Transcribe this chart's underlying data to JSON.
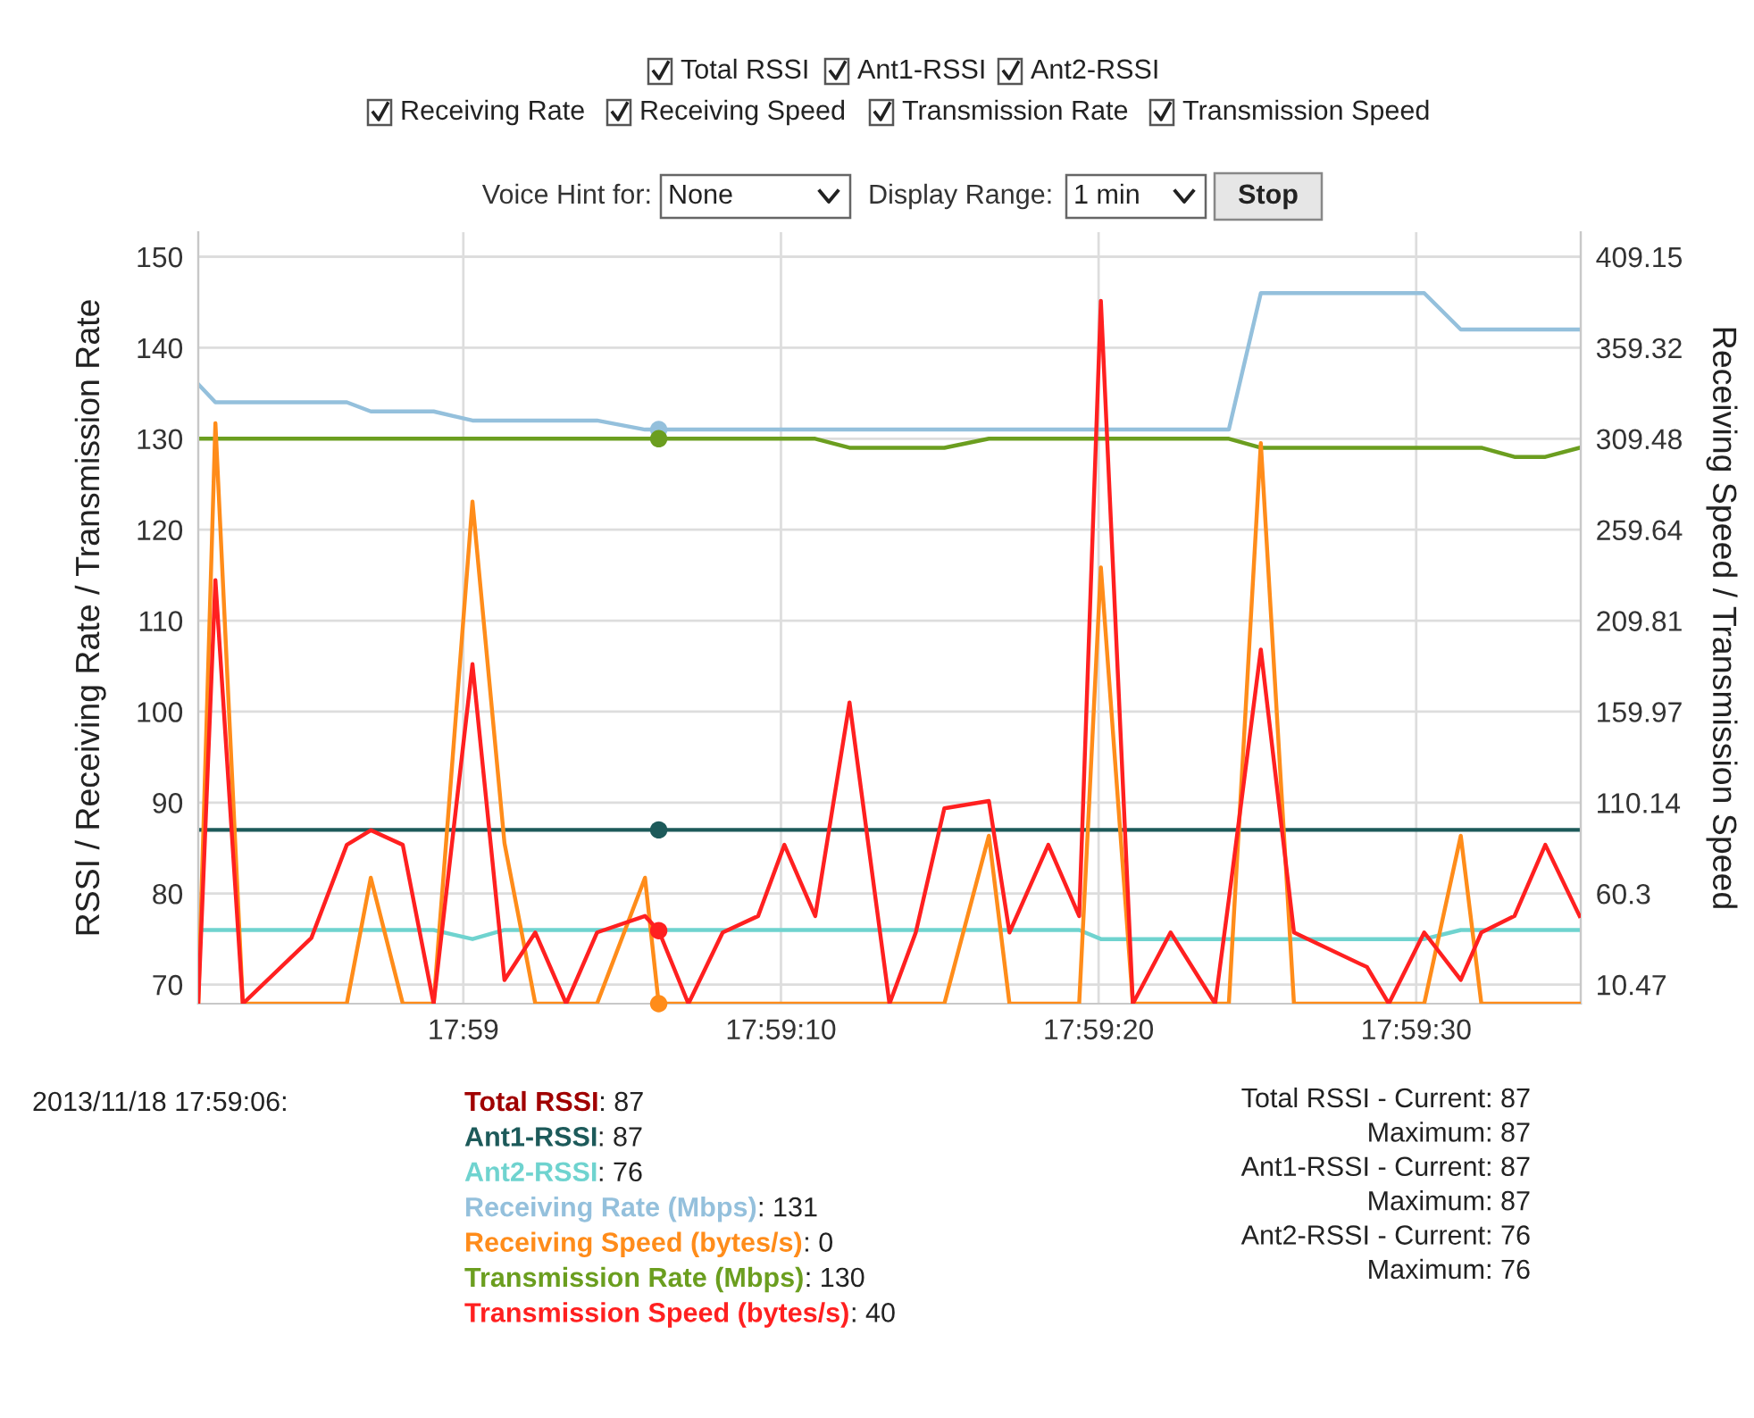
{
  "chart_data": {
    "type": "line",
    "ylabel": "RSSI / Receiving Rate / Transmission Rate",
    "y2label": "Receiving Speed / Transmission Speed",
    "x": [
      17.98101,
      17.98116,
      17.9814,
      17.982,
      17.98231,
      17.98252,
      17.9828,
      17.98307,
      17.98341,
      17.98369,
      17.98396,
      17.98423,
      17.9845,
      17.98492,
      17.98504,
      17.9853,
      17.9856,
      17.98591,
      17.98614,
      17.98641,
      17.98671,
      17.98706,
      17.98729,
      17.98754,
      17.98793,
      17.98811,
      17.98845,
      17.98872,
      17.98891,
      17.98919,
      17.98952,
      17.98991,
      17.99003,
      17.99031,
      17.9906,
      17.99124,
      17.99143,
      17.99174,
      17.99206,
      17.99224,
      17.99253,
      17.9928,
      17.9931
    ],
    "xlim": [
      17.98101,
      17.99311
    ],
    "xticks": [
      {
        "value": 17.98333,
        "label": "17:59"
      },
      {
        "value": 17.98611,
        "label": "17:59:10"
      },
      {
        "value": 17.98889,
        "label": "17:59:20"
      },
      {
        "value": 17.99167,
        "label": "17:59:30"
      }
    ],
    "ylim": [
      67.9,
      152.7
    ],
    "yticks": [
      70,
      80,
      90,
      100,
      110,
      120,
      130,
      140,
      150
    ],
    "y2lim": [
      0,
      422.6
    ],
    "y2ticks": [
      10.47,
      60.3,
      110.14,
      159.97,
      209.81,
      259.64,
      309.48,
      359.32,
      409.15
    ],
    "grid": true,
    "legend": "bottom",
    "series": [
      {
        "name": "Total RSSI",
        "color": "#a00000",
        "values": [
          null,
          null,
          null,
          null,
          null,
          null,
          null,
          null,
          null,
          null,
          null,
          null,
          null,
          null,
          null,
          null,
          null,
          null,
          null,
          null,
          null,
          null,
          null,
          null,
          null,
          null,
          null,
          null,
          null,
          null,
          null,
          null,
          null,
          null,
          null,
          null,
          null,
          null,
          null,
          null,
          null,
          null,
          null
        ]
      },
      {
        "name": "Ant1-RSSI",
        "color": "#1d5a5a",
        "values": [
          87,
          87,
          87,
          87,
          87,
          87,
          87,
          87,
          87,
          87,
          87,
          87,
          87,
          87,
          87,
          87,
          87,
          87,
          87,
          87,
          87,
          87,
          87,
          87,
          87,
          87,
          87,
          87,
          87,
          87,
          87,
          87,
          87,
          87,
          87,
          87,
          87,
          87,
          87,
          87,
          87,
          87,
          87
        ]
      },
      {
        "name": "Ant2-RSSI",
        "color": "#6fd3cf",
        "values": [
          76,
          76,
          76,
          76,
          76,
          76,
          76,
          76,
          75,
          76,
          76,
          76,
          76,
          76,
          76,
          76,
          76,
          76,
          76,
          76,
          76,
          76,
          76,
          76,
          76,
          76,
          76,
          76,
          75,
          75,
          75,
          75,
          75,
          75,
          75,
          75,
          75,
          75,
          76,
          76,
          76,
          76,
          76
        ]
      },
      {
        "name": "Receiving Rate (Mbps)",
        "color": "#94c0dc",
        "values": [
          136,
          134,
          134,
          134,
          134,
          133,
          133,
          133,
          132,
          132,
          132,
          132,
          132,
          131,
          131,
          131,
          131,
          131,
          131,
          131,
          131,
          131,
          131,
          131,
          131,
          131,
          131,
          131,
          131,
          131,
          131,
          131,
          131,
          146,
          146,
          146,
          146,
          146,
          142,
          142,
          142,
          142,
          142
        ]
      },
      {
        "name": "Receiving Speed (bytes/s)",
        "color": "#ff8c1a",
        "axis": "y2",
        "values": [
          0,
          318,
          0,
          0,
          0,
          69,
          0,
          0,
          275,
          88,
          0,
          0,
          0,
          69,
          0,
          0,
          0,
          0,
          0,
          0,
          0,
          0,
          0,
          0,
          92,
          0,
          0,
          0,
          239,
          0,
          0,
          0,
          0,
          307,
          0,
          0,
          0,
          0,
          92,
          0,
          0,
          0,
          0
        ]
      },
      {
        "name": "Transmission Rate (Mbps)",
        "color": "#6b9e1f",
        "values": [
          130,
          130,
          130,
          130,
          130,
          130,
          130,
          130,
          130,
          130,
          130,
          130,
          130,
          130,
          130,
          130,
          130,
          130,
          130,
          130,
          129,
          129,
          129,
          129,
          130,
          130,
          130,
          130,
          130,
          130,
          130,
          130,
          130,
          129,
          129,
          129,
          129,
          129,
          129,
          129,
          128,
          128,
          129
        ]
      },
      {
        "name": "Transmission Speed (bytes/s)",
        "color": "#ff2020",
        "axis": "y2",
        "values": [
          0,
          232,
          0,
          36,
          87,
          95,
          87,
          0,
          186,
          13,
          39,
          0,
          39,
          48,
          40,
          0,
          39,
          48,
          87,
          48,
          165,
          0,
          39,
          107,
          111,
          39,
          87,
          48,
          385,
          0,
          39,
          0,
          57,
          194,
          39,
          20,
          0,
          39,
          13,
          39,
          48,
          87,
          48
        ]
      },
      {
        "type": "scatter",
        "marker": "circle",
        "color": "#94c0dc",
        "values": [
          null,
          null,
          null,
          null,
          null,
          null,
          null,
          null,
          null,
          null,
          null,
          null,
          null,
          null,
          131,
          null,
          null,
          null,
          null,
          null,
          null,
          null,
          null,
          null,
          null,
          null,
          null,
          null,
          null,
          null,
          null,
          null,
          null,
          null,
          null,
          null,
          null,
          null,
          null,
          null,
          null,
          null,
          null
        ]
      },
      {
        "type": "scatter",
        "marker": "circle",
        "color": "#6b9e1f",
        "values": [
          null,
          null,
          null,
          null,
          null,
          null,
          null,
          null,
          null,
          null,
          null,
          null,
          null,
          null,
          130,
          null,
          null,
          null,
          null,
          null,
          null,
          null,
          null,
          null,
          null,
          null,
          null,
          null,
          null,
          null,
          null,
          null,
          null,
          null,
          null,
          null,
          null,
          null,
          null,
          null,
          null,
          null,
          null
        ]
      },
      {
        "type": "scatter",
        "marker": "circle",
        "color": "#1d5a5a",
        "values": [
          null,
          null,
          null,
          null,
          null,
          null,
          null,
          null,
          null,
          null,
          null,
          null,
          null,
          null,
          87,
          null,
          null,
          null,
          null,
          null,
          null,
          null,
          null,
          null,
          null,
          null,
          null,
          null,
          null,
          null,
          null,
          null,
          null,
          null,
          null,
          null,
          null,
          null,
          null,
          null,
          null,
          null,
          null
        ]
      },
      {
        "type": "scatter",
        "marker": "circle",
        "color": "#ff2020",
        "axis": "y2",
        "values": [
          null,
          null,
          null,
          null,
          null,
          null,
          null,
          null,
          null,
          null,
          null,
          null,
          null,
          null,
          40,
          null,
          null,
          null,
          null,
          null,
          null,
          null,
          null,
          null,
          null,
          null,
          null,
          null,
          null,
          null,
          null,
          null,
          null,
          null,
          null,
          null,
          null,
          null,
          null,
          null,
          null,
          null,
          null
        ]
      },
      {
        "type": "scatter",
        "marker": "circle",
        "color": "#ff8c1a",
        "axis": "y2",
        "values": [
          null,
          null,
          null,
          null,
          null,
          null,
          null,
          null,
          null,
          null,
          null,
          null,
          null,
          null,
          0,
          null,
          null,
          null,
          null,
          null,
          null,
          null,
          null,
          null,
          null,
          null,
          null,
          null,
          null,
          null,
          null,
          null,
          null,
          null,
          null,
          null,
          null,
          null,
          null,
          null,
          null,
          null,
          null
        ]
      }
    ],
    "annotations": [
      "Total RSSI",
      "Ant1-RSSI",
      "Ant2-RSSI",
      "Receiving Rate",
      "Receiving Speed",
      "Transmission Rate",
      "Transmission Speed",
      "Voice Hint for:",
      "None",
      "Display Range:",
      "1 min",
      "Stop",
      "2013/11/18 17:59:06:",
      ": 87",
      ": 87",
      ": 76",
      ": 131",
      ": 0",
      ": 130",
      ": 40",
      "Total RSSI - Current: 87",
      "Maximum: 87",
      "Ant1-RSSI - Current: 87",
      "Maximum: 87",
      "Ant2-RSSI - Current: 76",
      "Maximum: 76"
    ]
  }
}
